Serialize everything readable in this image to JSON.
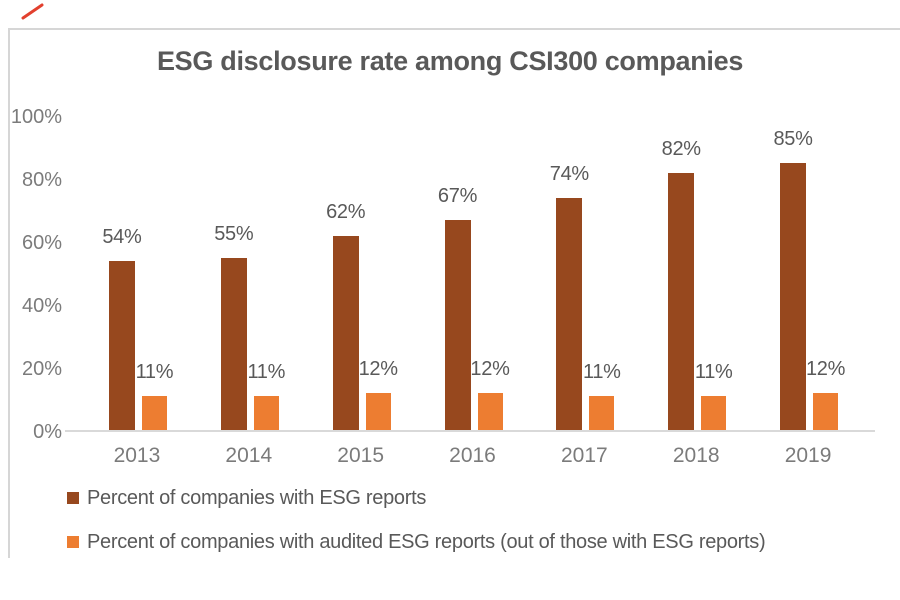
{
  "title": "ESG disclosure rate among CSI300 companies",
  "colors": {
    "series1_bar": "#97481E",
    "series2_bar": "#ED7D31",
    "title_text": "#595959",
    "axis_text": "#7B7B7B",
    "data_label_text": "#595959",
    "axis_line": "#D9D9D9",
    "frame_border": "#D6D6D6",
    "pen_mark": "#E2402E"
  },
  "chart_data": {
    "type": "bar",
    "title": "ESG disclosure rate among CSI300 companies",
    "categories": [
      "2013",
      "2014",
      "2015",
      "2016",
      "2017",
      "2018",
      "2019"
    ],
    "series": [
      {
        "name": "Percent of companies with ESG reports",
        "values": [
          54,
          55,
          62,
          67,
          74,
          82,
          85
        ],
        "labels": [
          "54%",
          "55%",
          "62%",
          "67%",
          "74%",
          "82%",
          "85%"
        ],
        "color": "#97481E"
      },
      {
        "name": "Percent of companies with audited ESG reports (out of those with ESG reports)",
        "values": [
          11,
          11,
          12,
          12,
          11,
          11,
          12
        ],
        "labels": [
          "11%",
          "11%",
          "12%",
          "12%",
          "11%",
          "11%",
          "12%"
        ],
        "color": "#ED7D31"
      }
    ],
    "xlabel": "",
    "ylabel": "",
    "ylim": [
      0,
      100
    ],
    "ytick_values": [
      0,
      20,
      40,
      60,
      80,
      100
    ],
    "ytick_labels": [
      "0%",
      "20%",
      "40%",
      "60%",
      "80%",
      "100%"
    ],
    "grid": false,
    "data_labels": true,
    "legend_position": "bottom-left"
  }
}
